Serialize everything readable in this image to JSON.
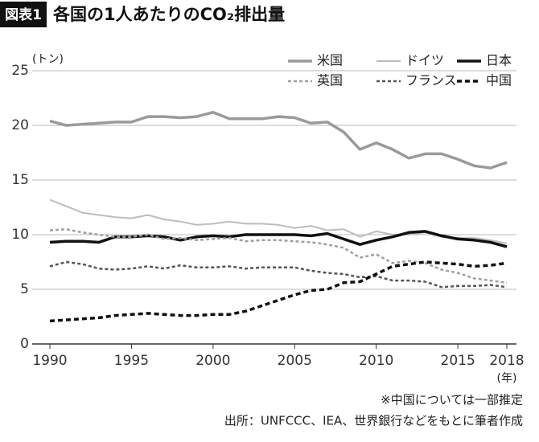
{
  "chart_data": {
    "type": "line",
    "badge": "図表1",
    "title": "各国の1人あたりのCO₂排出量",
    "y_unit": "(トン)",
    "x_unit": "(年)",
    "notes": [
      "※中国については一部推定",
      "出所：UNFCCC、IEA、世界銀行などをもとに筆者作成"
    ],
    "x": [
      1990,
      1991,
      1992,
      1993,
      1994,
      1995,
      1996,
      1997,
      1998,
      1999,
      2000,
      2001,
      2002,
      2003,
      2004,
      2005,
      2006,
      2007,
      2008,
      2009,
      2010,
      2011,
      2012,
      2013,
      2014,
      2015,
      2016,
      2017,
      2018
    ],
    "xlim": [
      1990,
      2018
    ],
    "xticks": [
      1990,
      1995,
      2000,
      2005,
      2010,
      2015,
      2018
    ],
    "ylim": [
      0,
      25
    ],
    "yticks": [
      0,
      5,
      10,
      15,
      20,
      25
    ],
    "grid": true,
    "series": [
      {
        "name": "米国",
        "color": "#9a9a9a",
        "dashed": false,
        "values": [
          20.4,
          20.0,
          20.1,
          20.2,
          20.3,
          20.3,
          20.8,
          20.8,
          20.7,
          20.8,
          21.2,
          20.6,
          20.6,
          20.6,
          20.8,
          20.7,
          20.2,
          20.3,
          19.4,
          17.8,
          18.4,
          17.8,
          17.0,
          17.4,
          17.4,
          16.9,
          16.3,
          16.1,
          16.6
        ]
      },
      {
        "name": "ドイツ",
        "color": "#bdbdbd",
        "dashed": false,
        "values": [
          13.2,
          12.6,
          12.0,
          11.8,
          11.6,
          11.5,
          11.8,
          11.4,
          11.2,
          10.9,
          11.0,
          11.2,
          11.0,
          11.0,
          10.9,
          10.6,
          10.8,
          10.4,
          10.5,
          9.8,
          10.3,
          10.0,
          10.0,
          10.2,
          9.8,
          9.7,
          9.7,
          9.5,
          9.2
        ]
      },
      {
        "name": "日本",
        "color": "#111111",
        "dashed": false,
        "values": [
          9.3,
          9.4,
          9.4,
          9.3,
          9.8,
          9.8,
          9.9,
          9.8,
          9.5,
          9.8,
          9.9,
          9.8,
          10.0,
          10.0,
          10.0,
          10.0,
          9.9,
          10.1,
          9.6,
          9.1,
          9.5,
          9.8,
          10.2,
          10.3,
          9.9,
          9.6,
          9.5,
          9.3,
          8.9
        ]
      },
      {
        "name": "英国",
        "color": "#a0a0a0",
        "dashed": true,
        "values": [
          10.4,
          10.5,
          10.2,
          10.0,
          9.8,
          9.8,
          10.0,
          9.6,
          9.7,
          9.5,
          9.6,
          9.7,
          9.4,
          9.5,
          9.5,
          9.4,
          9.3,
          9.1,
          8.8,
          7.9,
          8.2,
          7.4,
          7.6,
          7.4,
          6.8,
          6.5,
          6.0,
          5.8,
          5.6
        ]
      },
      {
        "name": "フランス",
        "color": "#555555",
        "dashed": true,
        "values": [
          7.1,
          7.5,
          7.3,
          6.9,
          6.8,
          6.9,
          7.1,
          6.9,
          7.2,
          7.0,
          7.0,
          7.1,
          6.9,
          7.0,
          7.0,
          7.0,
          6.7,
          6.5,
          6.4,
          6.1,
          6.2,
          5.8,
          5.8,
          5.7,
          5.2,
          5.3,
          5.3,
          5.4,
          5.2
        ]
      },
      {
        "name": "中国",
        "color": "#111111",
        "dashed": true,
        "values": [
          2.1,
          2.2,
          2.3,
          2.4,
          2.6,
          2.7,
          2.8,
          2.7,
          2.6,
          2.6,
          2.7,
          2.7,
          3.0,
          3.5,
          4.0,
          4.5,
          4.9,
          5.0,
          5.6,
          5.7,
          6.4,
          7.1,
          7.3,
          7.5,
          7.4,
          7.3,
          7.1,
          7.2,
          7.4
        ]
      }
    ]
  }
}
